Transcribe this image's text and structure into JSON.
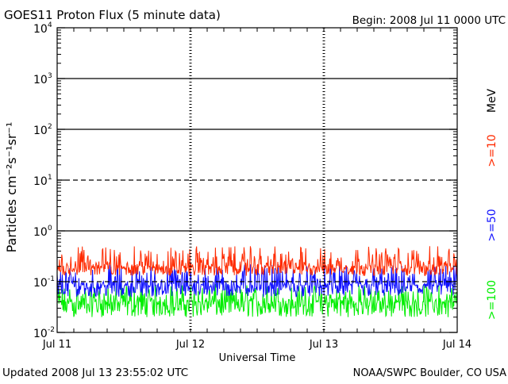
{
  "header": {
    "title": "GOES11 Proton Flux (5 minute data)",
    "begin": "Begin: 2008 Jul 11 0000 UTC"
  },
  "footer": {
    "updated": "Updated 2008 Jul 13 23:55:02 UTC",
    "credit": "NOAA/SWPC Boulder, CO USA"
  },
  "chart_data": {
    "type": "line",
    "title": "GOES11 Proton Flux (5 minute data)",
    "xlabel": "Universal Time",
    "ylabel": "Particles cm⁻²s⁻¹sr⁻¹",
    "yscale": "log",
    "ylim": [
      0.01,
      10000
    ],
    "xlim": [
      0,
      72
    ],
    "x_unit": "hours since 2008 Jul 11 0000 UTC",
    "grid": "horizontal lines at each decade (dashed at 10^1 and 10^-1), day separators at Jul 12 and Jul 13",
    "y_ticks": [
      {
        "base": "10",
        "exp": "-2",
        "value": 0.01
      },
      {
        "base": "10",
        "exp": "-1",
        "value": 0.1
      },
      {
        "base": "10",
        "exp": "0",
        "value": 1
      },
      {
        "base": "10",
        "exp": "1",
        "value": 10
      },
      {
        "base": "10",
        "exp": "2",
        "value": 100
      },
      {
        "base": "10",
        "exp": "3",
        "value": 1000
      },
      {
        "base": "10",
        "exp": "4",
        "value": 10000
      }
    ],
    "x_ticks": [
      {
        "label": "Jul 11",
        "hour": 0
      },
      {
        "label": "Jul 12",
        "hour": 24
      },
      {
        "label": "Jul 13",
        "hour": 48
      },
      {
        "label": "Jul 14",
        "hour": 72
      }
    ],
    "legend_unit": "MeV",
    "legend_position": "right-vertical",
    "series": [
      {
        "name": ">=10",
        "color": "#ff2a00",
        "mean": 0.2,
        "min": 0.13,
        "max": 0.5
      },
      {
        "name": ">=50",
        "color": "#1010ff",
        "mean": 0.085,
        "min": 0.05,
        "max": 0.22
      },
      {
        "name": ">=100",
        "color": "#00ee00",
        "mean": 0.04,
        "min": 0.02,
        "max": 0.09
      }
    ]
  }
}
